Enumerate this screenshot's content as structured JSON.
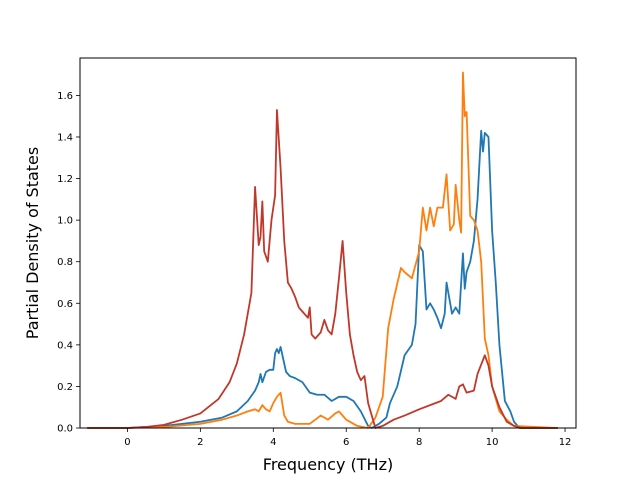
{
  "chart_data": {
    "type": "line",
    "title": "",
    "xlabel": "Frequency (THz)",
    "ylabel": "Partial Density of States",
    "xlim": [
      -1.3,
      12.3
    ],
    "ylim": [
      0.0,
      1.78
    ],
    "xticks": [
      0,
      2,
      4,
      6,
      8,
      10,
      12
    ],
    "yticks": [
      0.0,
      0.2,
      0.4,
      0.6,
      0.8,
      1.0,
      1.2,
      1.4,
      1.6
    ],
    "ytick_labels": [
      "0.0",
      "0.2",
      "0.4",
      "0.6",
      "0.8",
      "1.0",
      "1.2",
      "1.4",
      "1.6"
    ],
    "grid": false,
    "legend": "none",
    "series": [
      {
        "color": "#1f77b4",
        "points": [
          [
            -1.1,
            0
          ],
          [
            0,
            0
          ],
          [
            1,
            0.01
          ],
          [
            2,
            0.03
          ],
          [
            2.6,
            0.05
          ],
          [
            3,
            0.08
          ],
          [
            3.3,
            0.13
          ],
          [
            3.5,
            0.18
          ],
          [
            3.6,
            0.22
          ],
          [
            3.65,
            0.26
          ],
          [
            3.7,
            0.22
          ],
          [
            3.8,
            0.27
          ],
          [
            3.9,
            0.28
          ],
          [
            4.0,
            0.28
          ],
          [
            4.05,
            0.36
          ],
          [
            4.1,
            0.38
          ],
          [
            4.15,
            0.36
          ],
          [
            4.2,
            0.39
          ],
          [
            4.25,
            0.35
          ],
          [
            4.35,
            0.27
          ],
          [
            4.45,
            0.25
          ],
          [
            4.6,
            0.24
          ],
          [
            4.8,
            0.22
          ],
          [
            5.0,
            0.17
          ],
          [
            5.2,
            0.16
          ],
          [
            5.4,
            0.16
          ],
          [
            5.6,
            0.13
          ],
          [
            5.8,
            0.15
          ],
          [
            6.0,
            0.15
          ],
          [
            6.2,
            0.13
          ],
          [
            6.4,
            0.08
          ],
          [
            6.6,
            0.01
          ],
          [
            6.7,
            0
          ],
          [
            6.9,
            0.02
          ],
          [
            7.1,
            0.05
          ],
          [
            7.2,
            0.12
          ],
          [
            7.4,
            0.2
          ],
          [
            7.6,
            0.35
          ],
          [
            7.8,
            0.4
          ],
          [
            7.9,
            0.5
          ],
          [
            8.0,
            0.88
          ],
          [
            8.1,
            0.85
          ],
          [
            8.2,
            0.57
          ],
          [
            8.3,
            0.6
          ],
          [
            8.4,
            0.57
          ],
          [
            8.5,
            0.53
          ],
          [
            8.6,
            0.48
          ],
          [
            8.7,
            0.55
          ],
          [
            8.75,
            0.7
          ],
          [
            8.85,
            0.6
          ],
          [
            8.9,
            0.55
          ],
          [
            9.0,
            0.58
          ],
          [
            9.1,
            0.55
          ],
          [
            9.2,
            0.84
          ],
          [
            9.25,
            0.67
          ],
          [
            9.3,
            0.75
          ],
          [
            9.4,
            0.8
          ],
          [
            9.5,
            0.9
          ],
          [
            9.6,
            1.1
          ],
          [
            9.7,
            1.43
          ],
          [
            9.75,
            1.33
          ],
          [
            9.8,
            1.42
          ],
          [
            9.9,
            1.4
          ],
          [
            10.0,
            0.95
          ],
          [
            10.1,
            0.7
          ],
          [
            10.2,
            0.4
          ],
          [
            10.35,
            0.13
          ],
          [
            10.5,
            0.08
          ],
          [
            10.6,
            0.03
          ],
          [
            10.75,
            0
          ],
          [
            11.8,
            0
          ]
        ]
      },
      {
        "color": "#ff7f0e",
        "points": [
          [
            -1.1,
            0
          ],
          [
            0,
            0
          ],
          [
            1,
            0.005
          ],
          [
            2,
            0.02
          ],
          [
            2.6,
            0.04
          ],
          [
            3.0,
            0.06
          ],
          [
            3.3,
            0.08
          ],
          [
            3.5,
            0.09
          ],
          [
            3.6,
            0.08
          ],
          [
            3.7,
            0.11
          ],
          [
            3.8,
            0.09
          ],
          [
            3.9,
            0.08
          ],
          [
            4.0,
            0.12
          ],
          [
            4.1,
            0.15
          ],
          [
            4.2,
            0.17
          ],
          [
            4.3,
            0.06
          ],
          [
            4.4,
            0.03
          ],
          [
            4.6,
            0.02
          ],
          [
            5.0,
            0.02
          ],
          [
            5.3,
            0.06
          ],
          [
            5.5,
            0.04
          ],
          [
            5.7,
            0.07
          ],
          [
            5.8,
            0.08
          ],
          [
            6.0,
            0.04
          ],
          [
            6.3,
            0.01
          ],
          [
            6.6,
            0
          ],
          [
            6.8,
            0.05
          ],
          [
            7.0,
            0.15
          ],
          [
            7.15,
            0.48
          ],
          [
            7.3,
            0.62
          ],
          [
            7.5,
            0.77
          ],
          [
            7.6,
            0.75
          ],
          [
            7.8,
            0.72
          ],
          [
            8.0,
            0.85
          ],
          [
            8.1,
            1.06
          ],
          [
            8.2,
            0.95
          ],
          [
            8.3,
            1.06
          ],
          [
            8.4,
            0.97
          ],
          [
            8.5,
            1.06
          ],
          [
            8.65,
            1.06
          ],
          [
            8.75,
            1.22
          ],
          [
            8.85,
            0.95
          ],
          [
            8.95,
            0.98
          ],
          [
            9.0,
            1.17
          ],
          [
            9.1,
            1.0
          ],
          [
            9.15,
            0.94
          ],
          [
            9.2,
            1.71
          ],
          [
            9.25,
            1.5
          ],
          [
            9.3,
            1.52
          ],
          [
            9.4,
            1.02
          ],
          [
            9.5,
            1.0
          ],
          [
            9.6,
            0.95
          ],
          [
            9.7,
            0.8
          ],
          [
            9.8,
            0.43
          ],
          [
            9.9,
            0.35
          ],
          [
            10.0,
            0.2
          ],
          [
            10.2,
            0.08
          ],
          [
            10.4,
            0.04
          ],
          [
            10.6,
            0.01
          ],
          [
            11.8,
            0
          ]
        ]
      },
      {
        "color": "#c1382a",
        "points": [
          [
            -1.1,
            0
          ],
          [
            0,
            0
          ],
          [
            0.5,
            0.005
          ],
          [
            1,
            0.015
          ],
          [
            1.5,
            0.04
          ],
          [
            2,
            0.07
          ],
          [
            2.5,
            0.14
          ],
          [
            2.8,
            0.22
          ],
          [
            3.0,
            0.31
          ],
          [
            3.2,
            0.45
          ],
          [
            3.4,
            0.65
          ],
          [
            3.5,
            1.16
          ],
          [
            3.6,
            0.88
          ],
          [
            3.65,
            0.92
          ],
          [
            3.7,
            1.09
          ],
          [
            3.75,
            0.85
          ],
          [
            3.85,
            0.8
          ],
          [
            3.95,
            1.0
          ],
          [
            4.05,
            1.12
          ],
          [
            4.1,
            1.53
          ],
          [
            4.2,
            1.25
          ],
          [
            4.3,
            0.9
          ],
          [
            4.4,
            0.7
          ],
          [
            4.5,
            0.67
          ],
          [
            4.6,
            0.63
          ],
          [
            4.7,
            0.58
          ],
          [
            4.8,
            0.56
          ],
          [
            4.95,
            0.53
          ],
          [
            5.0,
            0.58
          ],
          [
            5.05,
            0.45
          ],
          [
            5.15,
            0.43
          ],
          [
            5.3,
            0.46
          ],
          [
            5.4,
            0.52
          ],
          [
            5.5,
            0.47
          ],
          [
            5.6,
            0.45
          ],
          [
            5.7,
            0.55
          ],
          [
            5.8,
            0.72
          ],
          [
            5.9,
            0.9
          ],
          [
            6.0,
            0.65
          ],
          [
            6.1,
            0.45
          ],
          [
            6.2,
            0.35
          ],
          [
            6.3,
            0.27
          ],
          [
            6.4,
            0.23
          ],
          [
            6.5,
            0.25
          ],
          [
            6.6,
            0.12
          ],
          [
            6.8,
            0
          ],
          [
            7.0,
            0.01
          ],
          [
            7.3,
            0.04
          ],
          [
            7.6,
            0.06
          ],
          [
            8.0,
            0.09
          ],
          [
            8.3,
            0.11
          ],
          [
            8.6,
            0.13
          ],
          [
            8.8,
            0.16
          ],
          [
            9.0,
            0.14
          ],
          [
            9.1,
            0.2
          ],
          [
            9.2,
            0.21
          ],
          [
            9.3,
            0.17
          ],
          [
            9.5,
            0.18
          ],
          [
            9.6,
            0.26
          ],
          [
            9.8,
            0.35
          ],
          [
            9.9,
            0.3
          ],
          [
            10.0,
            0.2
          ],
          [
            10.2,
            0.1
          ],
          [
            10.4,
            0.03
          ],
          [
            10.6,
            0.01
          ],
          [
            10.8,
            0
          ],
          [
            11.8,
            0
          ]
        ]
      }
    ]
  }
}
